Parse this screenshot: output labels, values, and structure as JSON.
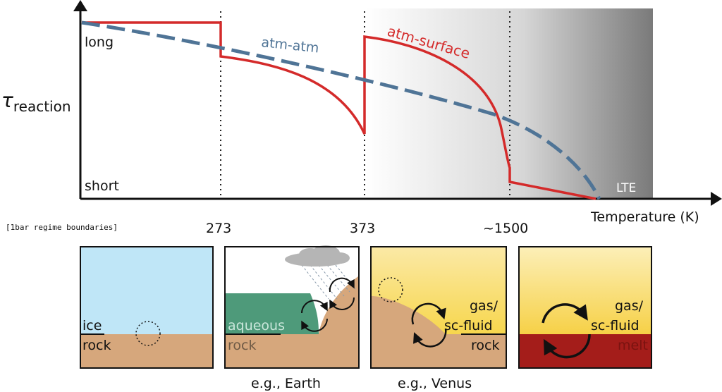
{
  "colors": {
    "atm_surface": "#d42a2a",
    "atm_atm": "#4f7496",
    "ice_sky": "#bfe6f7",
    "rock": "#d6a77c",
    "water": "#4e9a7a",
    "gas": "#f7d84a",
    "melt": "#a41d1a",
    "cloud": "#b5b5b5",
    "axis": "#111111"
  },
  "axis": {
    "y_label_symbol": "τ",
    "y_label_sub": "reaction",
    "y_top": "long",
    "y_bottom": "short",
    "x_label": "Temperature (K)",
    "regime_note": "[1bar regime boundaries]",
    "ticks": [
      "273",
      "373",
      "~1500"
    ]
  },
  "curves": {
    "atm_atm_label": "atm-atm",
    "atm_surface_label": "atm-surface",
    "lte_label": "LTE"
  },
  "panels": {
    "p1": {
      "top": "ice",
      "bottom": "rock",
      "icon": "dashed-cycle-icon"
    },
    "p2": {
      "top": "aqueous",
      "bottom": "rock",
      "caption": "e.g., Earth",
      "icon": "cycle-arrows-icon"
    },
    "p3": {
      "top1": "gas/",
      "top2": "sc-fluid",
      "bottom": "rock",
      "caption": "e.g., Venus",
      "icon": "cycle-arrows-icon"
    },
    "p4": {
      "top1": "gas/",
      "top2": "sc-fluid",
      "bottom": "melt",
      "icon": "cycle-arrows-icon"
    }
  }
}
